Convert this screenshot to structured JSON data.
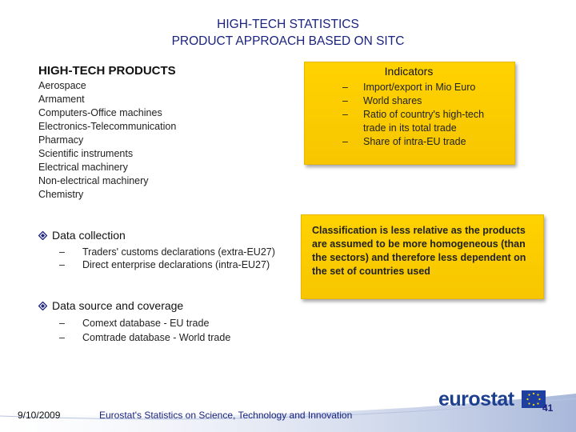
{
  "header": {
    "title_line1": "HIGH-TECH STATISTICS",
    "title_line2": "PRODUCT APPROACH BASED ON SITC"
  },
  "products": {
    "heading": "HIGH-TECH PRODUCTS",
    "items": [
      "Aerospace",
      "Armament",
      "Computers-Office machines",
      "Electronics-Telecommunication",
      "Pharmacy",
      "Scientific instruments",
      "Electrical machinery",
      "Non-electrical machinery",
      "Chemistry"
    ]
  },
  "indicators": {
    "title": "Indicators",
    "dash": "–",
    "items": [
      "Import/export in Mio Euro",
      "World shares",
      "Ratio of country's high-tech trade in its total trade",
      "Share of intra-EU trade"
    ]
  },
  "classification": {
    "text": "Classification is less relative as the products are assumed to be more homogeneous (than the sectors) and therefore less dependent on the set of countries used"
  },
  "data_collection": {
    "label": "Data collection",
    "items": [
      "Traders' customs declarations (extra-EU27)",
      "Direct enterprise declarations (intra-EU27)"
    ]
  },
  "data_source": {
    "label": "Data source and coverage",
    "items": [
      "Comext database - EU trade",
      "Comtrade database - World trade"
    ]
  },
  "footer": {
    "date": "9/10/2009",
    "text": "Eurostat's Statistics on Science, Technology and Innovation",
    "logo": "eurostat",
    "page": "41"
  },
  "colors": {
    "accent_navy": "#1a237e",
    "box_yellow": "#ffd200",
    "logo_blue": "#1d3f8f",
    "eu_flag_blue": "#1f3fa0",
    "eu_star_yellow": "#ffdd00"
  }
}
